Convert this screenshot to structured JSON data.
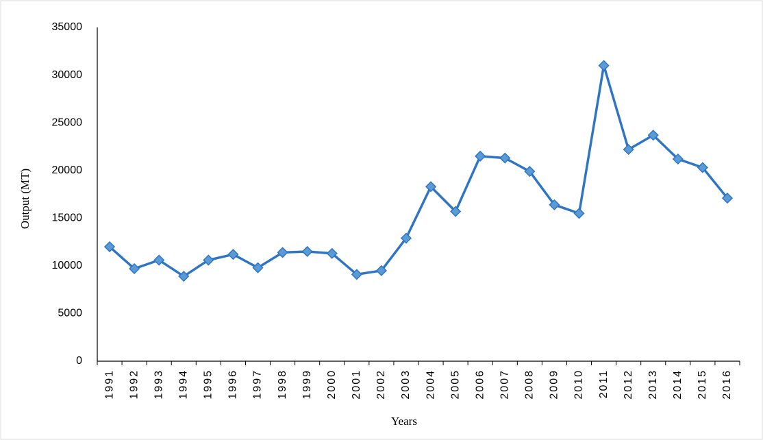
{
  "chart_data": {
    "type": "line",
    "x_label": "Years",
    "y_label": "Output (MT)",
    "categories": [
      "1991",
      "1992",
      "1993",
      "1994",
      "1995",
      "1996",
      "1997",
      "1998",
      "1999",
      "2000",
      "2001",
      "2002",
      "2003",
      "2004",
      "2005",
      "2006",
      "2007",
      "2008",
      "2009",
      "2010",
      "2011",
      "2012",
      "2013",
      "2014",
      "2015",
      "2016"
    ],
    "values": [
      12000,
      9700,
      10600,
      8900,
      10600,
      11200,
      9800,
      11400,
      11500,
      11300,
      9100,
      9500,
      12900,
      18300,
      15700,
      21500,
      21300,
      19900,
      16400,
      15500,
      31000,
      22200,
      23700,
      21200,
      20300,
      17100
    ],
    "color": "#2e75c6",
    "marker_color": "#5b9bd5",
    "ylim": [
      0,
      35000
    ],
    "yticks": [
      0,
      5000,
      10000,
      15000,
      20000,
      25000,
      30000,
      35000
    ],
    "grid": false
  }
}
